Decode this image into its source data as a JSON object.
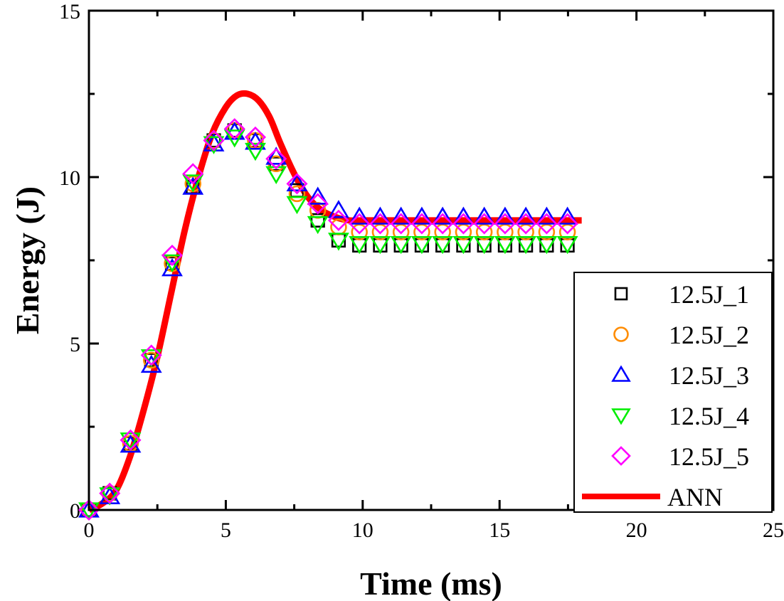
{
  "chart_data": {
    "type": "line",
    "title": "",
    "xlabel": "Time (ms)",
    "ylabel": "Energy (J)",
    "xlim": [
      0,
      25
    ],
    "ylim": [
      0,
      15
    ],
    "xticks": [
      0,
      5,
      10,
      15,
      20,
      25
    ],
    "yticks": [
      0,
      5,
      10,
      15
    ],
    "grid": false,
    "legend_position": "bottom-right",
    "x": [
      0,
      0.76,
      1.52,
      2.28,
      3.04,
      3.8,
      4.56,
      5.32,
      6.08,
      6.84,
      7.6,
      8.36,
      9.12,
      9.88,
      10.64,
      11.4,
      12.16,
      12.92,
      13.68,
      14.44,
      15.2,
      15.96,
      16.72,
      17.48
    ],
    "series": [
      {
        "name": "12.5J_1",
        "marker": "square",
        "color": "#000000",
        "values": [
          0,
          0.5,
          2.0,
          4.5,
          7.4,
          9.7,
          11.1,
          11.4,
          11.1,
          10.4,
          9.6,
          8.7,
          8.1,
          7.95,
          7.95,
          7.95,
          7.95,
          7.95,
          7.95,
          7.95,
          7.95,
          7.95,
          7.95,
          7.95
        ]
      },
      {
        "name": "12.5J_2",
        "marker": "circle",
        "color": "#ff8c00",
        "values": [
          0,
          0.5,
          2.0,
          4.5,
          7.4,
          9.8,
          11.1,
          11.4,
          11.1,
          10.4,
          9.5,
          9.0,
          8.5,
          8.35,
          8.35,
          8.35,
          8.35,
          8.35,
          8.35,
          8.35,
          8.35,
          8.35,
          8.35,
          8.35
        ]
      },
      {
        "name": "12.5J_3",
        "marker": "triangle-up",
        "color": "#0000ff",
        "values": [
          0,
          0.4,
          1.95,
          4.35,
          7.25,
          9.7,
          11.0,
          11.35,
          11.05,
          10.6,
          9.8,
          9.4,
          9.0,
          8.8,
          8.8,
          8.8,
          8.8,
          8.8,
          8.8,
          8.8,
          8.8,
          8.8,
          8.8,
          8.8
        ]
      },
      {
        "name": "12.5J_4",
        "marker": "triangle-down",
        "color": "#00ee00",
        "values": [
          0,
          0.45,
          2.1,
          4.6,
          7.45,
          9.85,
          11.0,
          11.2,
          10.8,
          10.1,
          9.2,
          8.6,
          8.1,
          8.0,
          8.0,
          8.0,
          8.0,
          8.0,
          8.0,
          8.0,
          8.0,
          8.0,
          8.0,
          8.0
        ]
      },
      {
        "name": "12.5J_5",
        "marker": "diamond",
        "color": "#ff00ff",
        "values": [
          0,
          0.5,
          2.1,
          4.65,
          7.65,
          10.1,
          11.1,
          11.45,
          11.2,
          10.55,
          9.8,
          9.2,
          8.7,
          8.6,
          8.6,
          8.6,
          8.6,
          8.6,
          8.6,
          8.6,
          8.6,
          8.6,
          8.6,
          8.6
        ]
      }
    ],
    "ann": {
      "name": "ANN",
      "color": "#ff0000",
      "x": [
        0,
        0.5,
        1,
        1.5,
        2,
        2.5,
        3,
        3.5,
        4,
        4.5,
        5,
        5.4,
        5.8,
        6.2,
        6.6,
        7,
        7.5,
        8,
        8.5,
        9,
        9.5,
        10,
        18
      ],
      "y": [
        0,
        0.2,
        0.6,
        1.6,
        3.0,
        4.6,
        6.5,
        8.4,
        10.0,
        11.3,
        12.1,
        12.45,
        12.5,
        12.3,
        11.8,
        11.0,
        10.1,
        9.4,
        9.0,
        8.8,
        8.7,
        8.7,
        8.7
      ]
    }
  }
}
